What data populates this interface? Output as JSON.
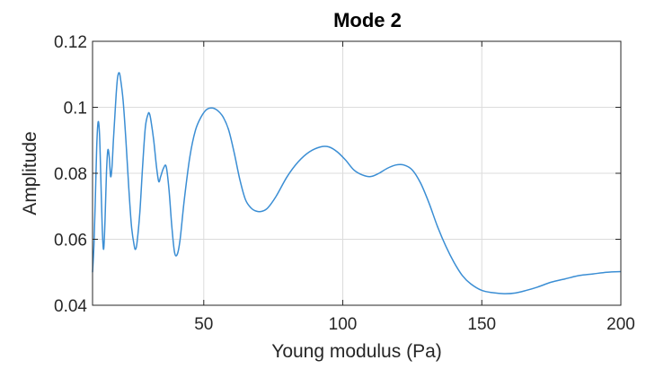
{
  "chart_data": {
    "type": "line",
    "title": "Mode 2",
    "xlabel": "Young modulus (Pa)",
    "ylabel": "Amplitude",
    "xlim": [
      10,
      200
    ],
    "ylim": [
      0.04,
      0.12
    ],
    "xticks": [
      50,
      100,
      150,
      200
    ],
    "xtick_labels": [
      "50",
      "100",
      "150",
      "200"
    ],
    "yticks": [
      0.04,
      0.06,
      0.08,
      0.1,
      0.12
    ],
    "ytick_labels": [
      "0.04",
      "0.06",
      "0.08",
      "0.1",
      "0.12"
    ],
    "grid": true,
    "box": true,
    "series": [
      {
        "color": "#3b8ed4",
        "points": [
          [
            10,
            0.05
          ],
          [
            10.5,
            0.058
          ],
          [
            11,
            0.072
          ],
          [
            11.5,
            0.088
          ],
          [
            12,
            0.0955
          ],
          [
            12.5,
            0.092
          ],
          [
            13,
            0.078
          ],
          [
            13.5,
            0.063
          ],
          [
            14,
            0.057
          ],
          [
            14.5,
            0.066
          ],
          [
            15,
            0.08
          ],
          [
            15.5,
            0.087
          ],
          [
            16,
            0.085
          ],
          [
            16.5,
            0.079
          ],
          [
            17,
            0.082
          ],
          [
            17.5,
            0.09
          ],
          [
            18,
            0.097
          ],
          [
            18.5,
            0.104
          ],
          [
            19,
            0.109
          ],
          [
            19.5,
            0.1105
          ],
          [
            20,
            0.109
          ],
          [
            21,
            0.102
          ],
          [
            22,
            0.09
          ],
          [
            23,
            0.076
          ],
          [
            24,
            0.064
          ],
          [
            25,
            0.058
          ],
          [
            25.5,
            0.057
          ],
          [
            26,
            0.059
          ],
          [
            27,
            0.068
          ],
          [
            28,
            0.082
          ],
          [
            29,
            0.094
          ],
          [
            30,
            0.098
          ],
          [
            30.5,
            0.098
          ],
          [
            31,
            0.096
          ],
          [
            32,
            0.09
          ],
          [
            33,
            0.082
          ],
          [
            33.8,
            0.0775
          ],
          [
            34.5,
            0.079
          ],
          [
            35.5,
            0.0815
          ],
          [
            36.5,
            0.082
          ],
          [
            37.5,
            0.075
          ],
          [
            38.5,
            0.064
          ],
          [
            39.5,
            0.056
          ],
          [
            40.5,
            0.0555
          ],
          [
            41.5,
            0.06
          ],
          [
            43,
            0.072
          ],
          [
            45,
            0.085
          ],
          [
            47,
            0.093
          ],
          [
            49,
            0.097
          ],
          [
            51,
            0.0993
          ],
          [
            53,
            0.0998
          ],
          [
            55,
            0.099
          ],
          [
            57,
            0.097
          ],
          [
            59,
            0.093
          ],
          [
            61,
            0.086
          ],
          [
            63,
            0.078
          ],
          [
            65,
            0.072
          ],
          [
            67,
            0.0695
          ],
          [
            69,
            0.0685
          ],
          [
            71,
            0.0685
          ],
          [
            73,
            0.0695
          ],
          [
            76,
            0.073
          ],
          [
            80,
            0.079
          ],
          [
            84,
            0.0835
          ],
          [
            88,
            0.0865
          ],
          [
            92,
            0.088
          ],
          [
            95,
            0.088
          ],
          [
            98,
            0.0865
          ],
          [
            101,
            0.084
          ],
          [
            104,
            0.081
          ],
          [
            107,
            0.0795
          ],
          [
            110,
            0.079
          ],
          [
            113,
            0.08
          ],
          [
            116,
            0.0815
          ],
          [
            119,
            0.0825
          ],
          [
            122,
            0.0825
          ],
          [
            125,
            0.081
          ],
          [
            128,
            0.077
          ],
          [
            131,
            0.071
          ],
          [
            134,
            0.064
          ],
          [
            137,
            0.058
          ],
          [
            140,
            0.053
          ],
          [
            143,
            0.049
          ],
          [
            146,
            0.0465
          ],
          [
            150,
            0.0445
          ],
          [
            154,
            0.0438
          ],
          [
            158,
            0.0435
          ],
          [
            162,
            0.0437
          ],
          [
            166,
            0.0445
          ],
          [
            170,
            0.0455
          ],
          [
            175,
            0.047
          ],
          [
            180,
            0.048
          ],
          [
            185,
            0.049
          ],
          [
            190,
            0.0495
          ],
          [
            195,
            0.05
          ],
          [
            200,
            0.0502
          ]
        ]
      }
    ]
  }
}
